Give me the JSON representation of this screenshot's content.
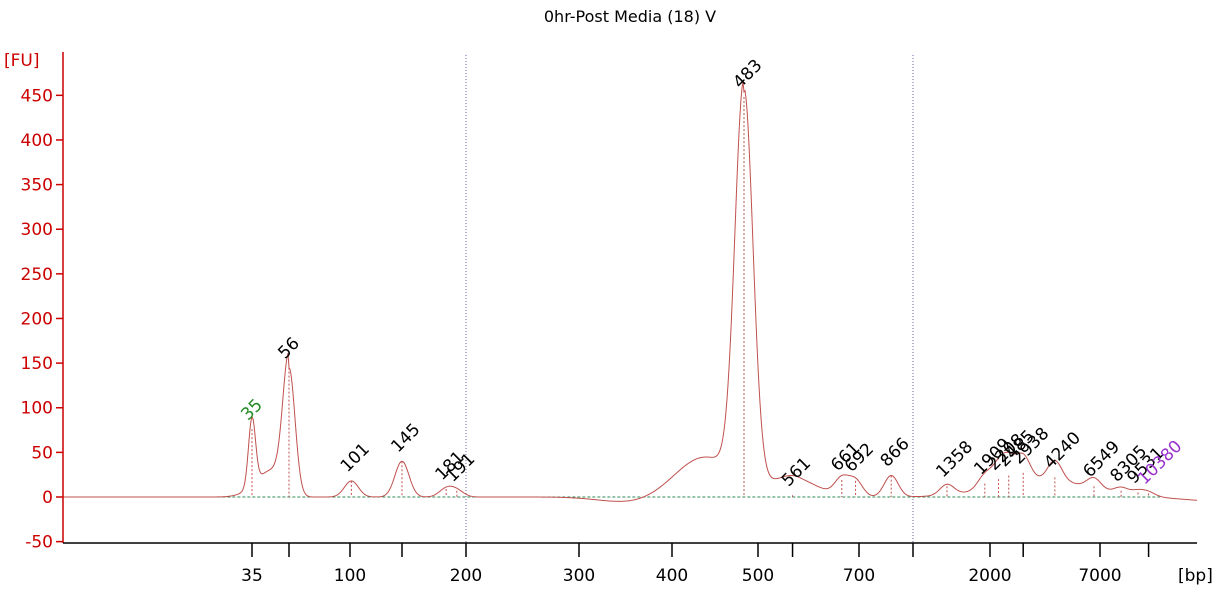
{
  "chart_data": {
    "type": "line",
    "title": "0hr-Post Media (18) V",
    "ylabel": "[FU]",
    "xlabel": "[bp]",
    "ylim": [
      -50,
      470
    ],
    "y_ticks": [
      -50,
      0,
      50,
      100,
      150,
      200,
      250,
      300,
      350,
      400,
      450
    ],
    "x_tick_labels": [
      "35",
      "100",
      "200",
      "300",
      "400",
      "500",
      "700",
      "2000",
      "7000"
    ],
    "grid": "none",
    "colors": {
      "trace": "#c0504d",
      "axis": "#cc0000",
      "baseline": "#2e8b57",
      "lower_marker": "#228b22",
      "upper_marker": "#9933cc",
      "window_line": "#6666aa"
    },
    "peaks": [
      {
        "label": "35",
        "bp": 35,
        "fu": 76,
        "color": "#228b22"
      },
      {
        "label": "56",
        "bp": 56,
        "fu": 145,
        "color": "#000000"
      },
      {
        "label": "101",
        "bp": 101,
        "fu": 18,
        "color": "#000000"
      },
      {
        "label": "145",
        "bp": 145,
        "fu": 40,
        "color": "#000000"
      },
      {
        "label": "181",
        "bp": 181,
        "fu": 9,
        "color": "#000000"
      },
      {
        "label": "191",
        "bp": 191,
        "fu": 7,
        "color": "#000000"
      },
      {
        "label": "483",
        "bp": 483,
        "fu": 448,
        "color": "#000000"
      },
      {
        "label": "561",
        "bp": 561,
        "fu": 2,
        "color": "#000000"
      },
      {
        "label": "661",
        "bp": 661,
        "fu": 19,
        "color": "#000000"
      },
      {
        "label": "692",
        "bp": 692,
        "fu": 18,
        "color": "#000000"
      },
      {
        "label": "866",
        "bp": 866,
        "fu": 24,
        "color": "#000000"
      },
      {
        "label": "1358",
        "bp": 1358,
        "fu": 12,
        "color": "#000000"
      },
      {
        "label": "1909",
        "bp": 1909,
        "fu": 15,
        "color": "#000000"
      },
      {
        "label": "2208",
        "bp": 2208,
        "fu": 20,
        "color": "#000000"
      },
      {
        "label": "2485",
        "bp": 2485,
        "fu": 24,
        "color": "#000000"
      },
      {
        "label": "2938",
        "bp": 2938,
        "fu": 27,
        "color": "#000000"
      },
      {
        "label": "4240",
        "bp": 4240,
        "fu": 22,
        "color": "#000000"
      },
      {
        "label": "6549",
        "bp": 6549,
        "fu": 12,
        "color": "#000000"
      },
      {
        "label": "8305",
        "bp": 8305,
        "fu": 7,
        "color": "#000000"
      },
      {
        "label": "9531",
        "bp": 9531,
        "fu": 5,
        "color": "#000000"
      },
      {
        "label": "10380",
        "bp": 10380,
        "fu": 4,
        "color": "#9933cc"
      }
    ],
    "region_lines_bp": [
      200,
      1000
    ]
  }
}
